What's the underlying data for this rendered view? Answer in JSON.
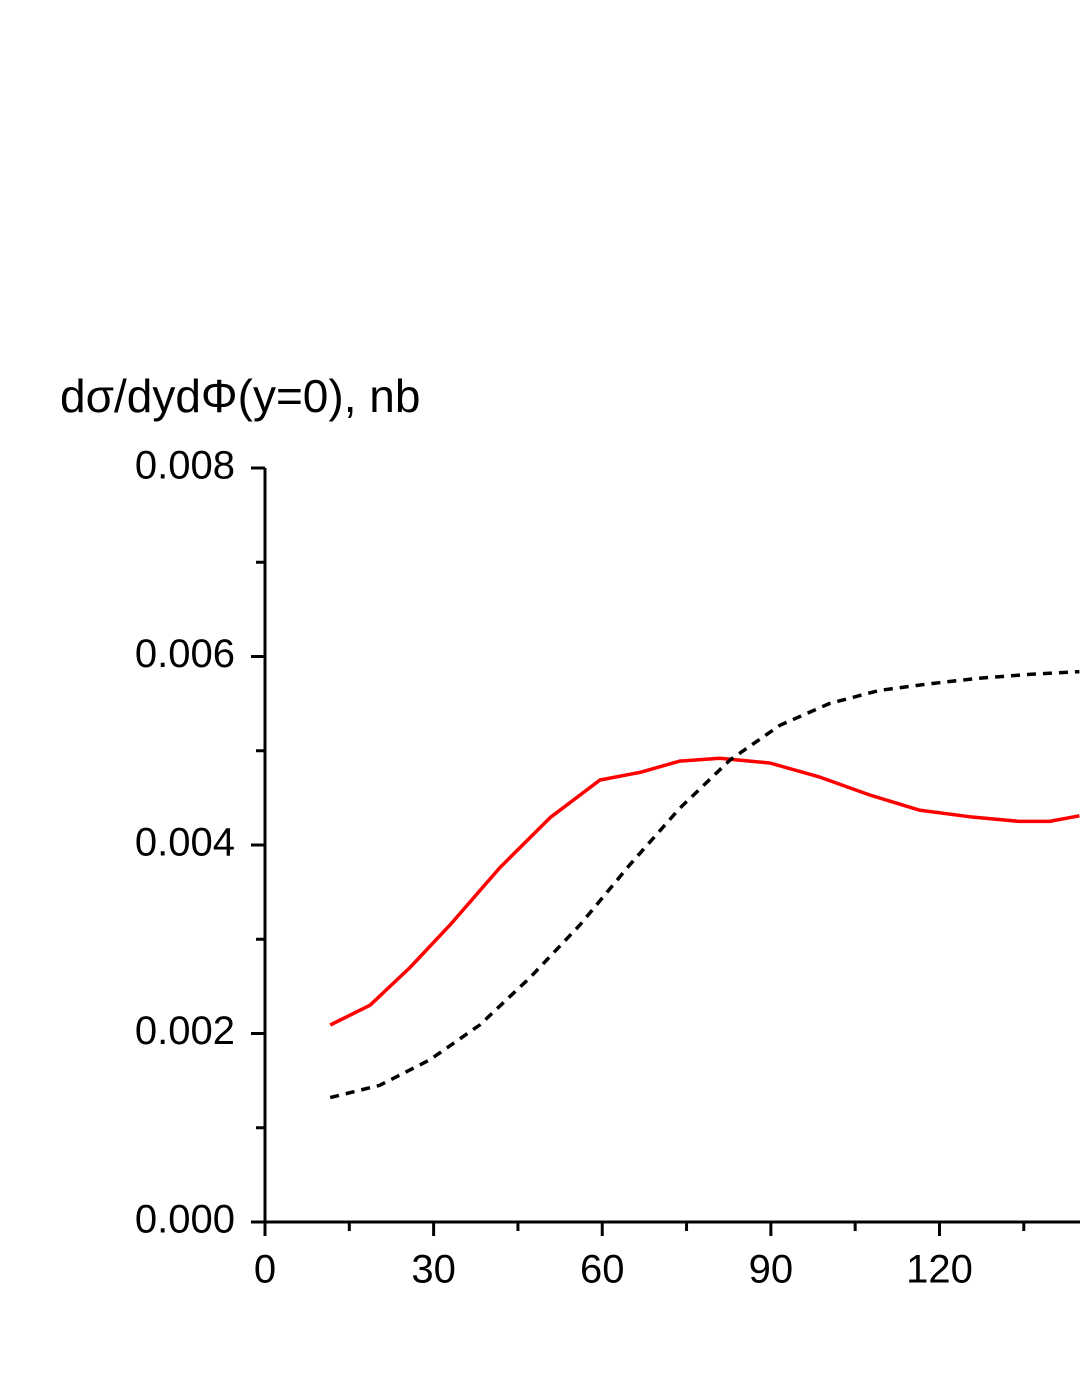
{
  "chart_data": {
    "type": "line",
    "ylabel": "dσ/dydΦ(y=0), nb",
    "xlim": [
      0,
      145
    ],
    "ylim": [
      0,
      0.008
    ],
    "xticks": [
      0,
      30,
      60,
      90,
      120
    ],
    "minor_xticks": [
      15,
      45,
      75,
      105,
      135
    ],
    "yticks": [
      {
        "value": 0,
        "label": "0.000"
      },
      {
        "value": 0.002,
        "label": "0.002"
      },
      {
        "value": 0.004,
        "label": "0.004"
      },
      {
        "value": 0.006,
        "label": "0.006"
      },
      {
        "value": 0.008,
        "label": "0.008"
      }
    ],
    "minor_yticks": [
      0.001,
      0.003,
      0.005,
      0.007
    ],
    "series": [
      {
        "color": "#ff0000",
        "dash": false,
        "x": [
          11.6,
          18.7,
          25.8,
          32.9,
          41.8,
          50.7,
          59.6,
          66.7,
          73.8,
          80.9,
          89.8,
          98.7,
          107.6,
          116.4,
          125.3,
          134.2,
          139.6,
          144.9
        ],
        "values": [
          0.00209,
          0.0023,
          0.0027,
          0.00315,
          0.00376,
          0.00429,
          0.00469,
          0.00477,
          0.00489,
          0.00492,
          0.00487,
          0.00472,
          0.00453,
          0.00437,
          0.0043,
          0.00425,
          0.00425,
          0.00431
        ]
      },
      {
        "color": "#000000",
        "dash": true,
        "x": [
          11.6,
          20.4,
          29.3,
          38.2,
          47.1,
          56.0,
          64.9,
          73.8,
          82.7,
          91.6,
          100.4,
          109.3,
          118.2,
          127.1,
          136.0,
          144.9
        ],
        "values": [
          0.00132,
          0.00145,
          0.00172,
          0.00209,
          0.00259,
          0.00315,
          0.00379,
          0.00439,
          0.0049,
          0.00527,
          0.0055,
          0.00564,
          0.00571,
          0.00577,
          0.00581,
          0.00584
        ]
      }
    ]
  }
}
